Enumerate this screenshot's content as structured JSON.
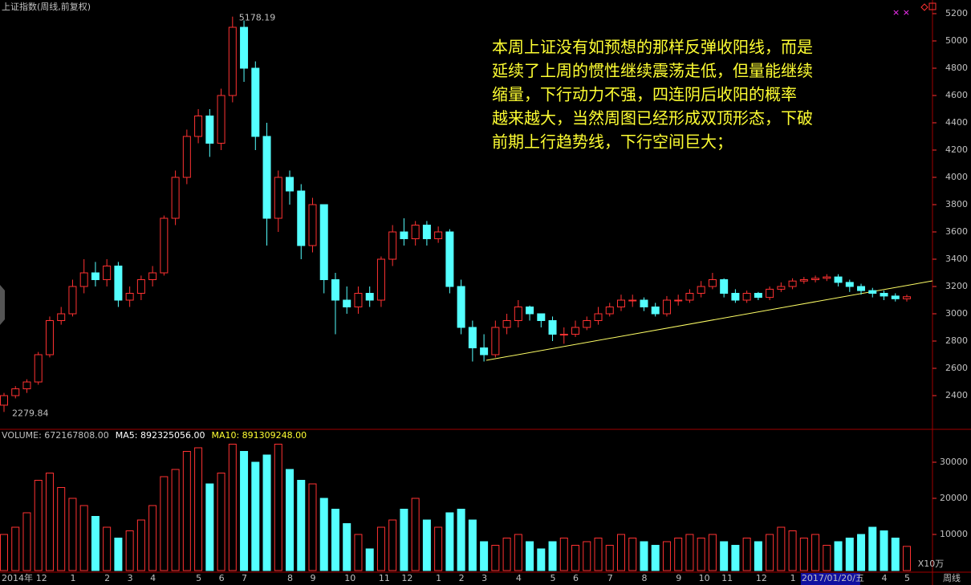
{
  "chart_data": {
    "type": "candlestick",
    "title": "上证指数(周线,前复权)",
    "annotation": [
      "本周上证没有如预想的那样反弹收阳线，而是",
      "延续了上周的惯性继续震荡走低，但量能继续",
      "缩量，下行动力不强，四连阴后收阳的概率",
      "越来越大，当然周图已经形成双顶形态，下破",
      "前期上行趋势线，下行空间巨大；"
    ],
    "period_label": "周线",
    "up_color": "#ff3232",
    "down_color": "#54ffff",
    "categories": [
      "2014年",
      null,
      null,
      "12",
      null,
      null,
      "1",
      null,
      null,
      "2",
      null,
      "3",
      null,
      "4",
      null,
      null,
      null,
      "5",
      null,
      "6",
      null,
      "7",
      null,
      null,
      null,
      "8",
      null,
      "9",
      null,
      null,
      "10",
      null,
      null,
      "11",
      null,
      "12",
      null,
      null,
      "1",
      null,
      "2",
      null,
      "3",
      null,
      null,
      "4",
      null,
      null,
      "5",
      null,
      "6",
      null,
      null,
      "7",
      null,
      null,
      "8",
      null,
      null,
      "9",
      null,
      "10",
      null,
      "11",
      null,
      null,
      "12",
      null,
      null,
      "1",
      "2017/01/20/五",
      null,
      null,
      null,
      null,
      null,
      null,
      "4",
      null,
      "5"
    ],
    "highlight_category": 70,
    "open": [
      2330,
      2400,
      2450,
      2500,
      2700,
      2950,
      3000,
      3200,
      3300,
      3250,
      3350,
      3100,
      3150,
      3250,
      3300,
      3700,
      4000,
      4300,
      4450,
      4250,
      4600,
      5100,
      4800,
      4300,
      3700,
      4000,
      3900,
      3500,
      3800,
      3250,
      3100,
      3050,
      3150,
      3100,
      3400,
      3600,
      3550,
      3650,
      3550,
      3600,
      3200,
      2900,
      2750,
      2700,
      2900,
      2950,
      3050,
      3000,
      2950,
      2850,
      2850,
      2900,
      2950,
      3000,
      3050,
      3100,
      3100,
      3050,
      3000,
      3100,
      3100,
      3150,
      3200,
      3250,
      3150,
      3100,
      3150,
      3120,
      3180,
      3200,
      3240,
      3250,
      3260,
      3270,
      3230,
      3200,
      3170,
      3150,
      3130,
      3110
    ],
    "high": [
      2420,
      2470,
      2520,
      2720,
      2980,
      3050,
      3250,
      3400,
      3380,
      3400,
      3380,
      3200,
      3280,
      3350,
      3720,
      4050,
      4350,
      4500,
      4500,
      4650,
      5178.19,
      5150,
      4850,
      4400,
      4050,
      4050,
      3950,
      3850,
      3800,
      3300,
      3200,
      3200,
      3200,
      3420,
      3650,
      3700,
      3680,
      3680,
      3640,
      3620,
      3250,
      2950,
      2850,
      2950,
      3000,
      3100,
      3060,
      3000,
      2980,
      2900,
      2950,
      2980,
      3050,
      3080,
      3140,
      3140,
      3120,
      3080,
      3130,
      3140,
      3180,
      3240,
      3300,
      3260,
      3180,
      3170,
      3160,
      3200,
      3230,
      3260,
      3270,
      3280,
      3290,
      3290,
      3250,
      3220,
      3190,
      3170,
      3150,
      3140
    ],
    "low": [
      2279.84,
      2380,
      2420,
      2480,
      2680,
      2920,
      2980,
      3150,
      3200,
      3200,
      3050,
      3050,
      3100,
      3200,
      3280,
      3650,
      3950,
      4250,
      4150,
      4200,
      4550,
      4700,
      4200,
      3500,
      3600,
      3800,
      3400,
      3450,
      3150,
      2850,
      3000,
      3000,
      3050,
      3050,
      3350,
      3500,
      3500,
      3500,
      3520,
      3150,
      2850,
      2650,
      2650,
      2680,
      2850,
      2900,
      2950,
      2900,
      2800,
      2780,
      2830,
      2880,
      2920,
      2980,
      3020,
      3050,
      3020,
      2980,
      2980,
      3060,
      3080,
      3120,
      3180,
      3120,
      3080,
      3080,
      3100,
      3100,
      3160,
      3180,
      3220,
      3230,
      3240,
      3200,
      3160,
      3140,
      3120,
      3100,
      3090,
      3090
    ],
    "close": [
      2400,
      2450,
      2500,
      2700,
      2950,
      3000,
      3200,
      3300,
      3250,
      3350,
      3100,
      3150,
      3250,
      3300,
      3700,
      4000,
      4300,
      4450,
      4250,
      4600,
      5100,
      4800,
      4300,
      3700,
      4000,
      3900,
      3500,
      3800,
      3250,
      3100,
      3050,
      3150,
      3100,
      3400,
      3600,
      3550,
      3650,
      3550,
      3600,
      3200,
      2900,
      2750,
      2700,
      2900,
      2950,
      3050,
      3000,
      2950,
      2850,
      2850,
      2900,
      2950,
      3000,
      3050,
      3100,
      3100,
      3050,
      3000,
      3100,
      3100,
      3150,
      3200,
      3250,
      3150,
      3100,
      3150,
      3120,
      3180,
      3200,
      3240,
      3250,
      3260,
      3270,
      3230,
      3200,
      3170,
      3150,
      3130,
      3110,
      3125
    ],
    "ylim": [
      2153,
      5300
    ],
    "yticks": [
      2400,
      2600,
      2800,
      3000,
      3200,
      3400,
      3600,
      3800,
      4000,
      4200,
      4400,
      4600,
      4800,
      5000,
      5200
    ],
    "volume": {
      "legend": [
        "VOLUME: 672167808.00",
        "MA5: 892325056.00",
        "MA10: 891309248.00"
      ],
      "unit_label": "X10万",
      "values": [
        10000,
        12000,
        16000,
        25000,
        27000,
        23000,
        20000,
        18000,
        15000,
        12000,
        9000,
        11000,
        14000,
        18000,
        26000,
        28000,
        33000,
        34000,
        24000,
        27000,
        35000,
        33000,
        30000,
        32000,
        35000,
        28000,
        25000,
        24000,
        20000,
        17000,
        13000,
        10000,
        6000,
        12000,
        14000,
        17000,
        20000,
        14000,
        12000,
        16000,
        17000,
        14000,
        8000,
        7000,
        9000,
        10000,
        8000,
        6000,
        8000,
        9000,
        7000,
        8000,
        9000,
        7000,
        10000,
        9000,
        8000,
        7000,
        8000,
        9000,
        10000,
        9000,
        10000,
        8000,
        7000,
        9000,
        8000,
        10000,
        12000,
        11000,
        9000,
        10000,
        7000,
        8000,
        9000,
        10000,
        12000,
        11000,
        9000,
        6700
      ],
      "ylim": [
        0,
        36000
      ],
      "yticks": [
        10000,
        20000,
        30000
      ]
    }
  }
}
